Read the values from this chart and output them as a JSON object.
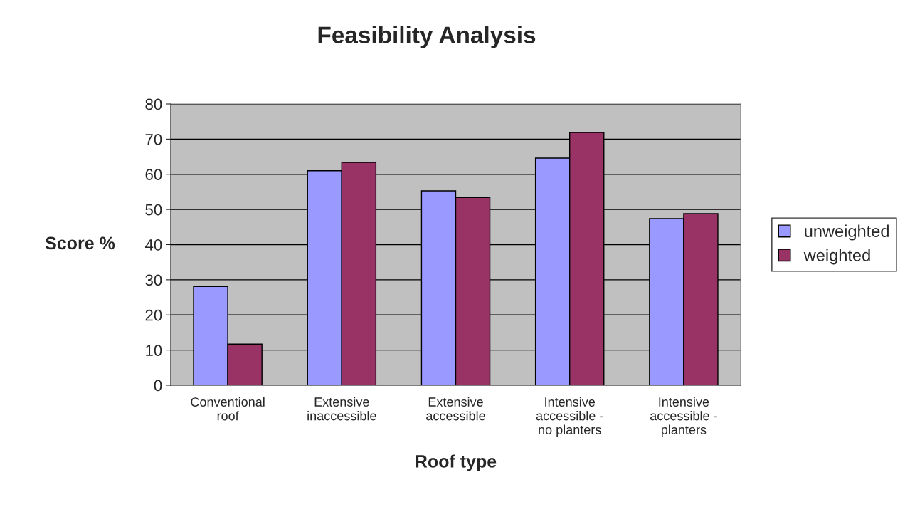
{
  "chart_data": {
    "type": "bar",
    "title": "Feasibility Analysis",
    "xlabel": "Roof type",
    "ylabel": "Score %",
    "categories": [
      "Conventional\nroof",
      "Extensive\ninaccessible",
      "Extensive\naccessible",
      "Intensive\naccessible -\nno planters",
      "Intensive\naccessible -\nplanters"
    ],
    "series": [
      {
        "name": "unweighted",
        "color": "#9999ff",
        "values": [
          28.1,
          61,
          55.3,
          64.6,
          47.4
        ]
      },
      {
        "name": "weighted",
        "color": "#993366",
        "values": [
          11.7,
          63.4,
          53.4,
          71.9,
          48.8
        ]
      }
    ],
    "ylim": [
      0,
      80
    ],
    "yticks": [
      0,
      10,
      20,
      30,
      40,
      50,
      60,
      70,
      80
    ],
    "grid": "y",
    "legend": "right"
  }
}
